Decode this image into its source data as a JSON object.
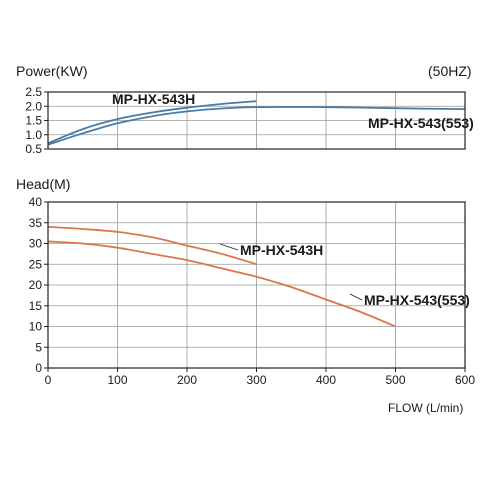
{
  "frequency_label": "(50HZ)",
  "flow_axis_label": "FLOW (L/min)",
  "colors": {
    "power_curve": "#4a7ba4",
    "head_curve": "#d9774f",
    "frame": "#222222",
    "grid": "#9a9a9a"
  },
  "chart_data": [
    {
      "type": "line",
      "title": "",
      "ylabel": "Power(KW)",
      "xlabel": "",
      "xlim": [
        0,
        600
      ],
      "ylim": [
        0.5,
        2.5
      ],
      "grid": "on",
      "y_ticks": [
        "0.5",
        "1.0",
        "1.5",
        "2.0",
        "2.5"
      ],
      "series": [
        {
          "name": "MP-HX-543H",
          "x": [
            0,
            50,
            100,
            150,
            200,
            250,
            300
          ],
          "y": [
            0.7,
            1.2,
            1.55,
            1.78,
            1.95,
            2.08,
            2.18
          ]
        },
        {
          "name": "MP-HX-543(553)",
          "x": [
            0,
            50,
            100,
            150,
            200,
            250,
            300,
            400,
            500,
            600
          ],
          "y": [
            0.65,
            1.05,
            1.4,
            1.65,
            1.82,
            1.92,
            1.97,
            1.97,
            1.93,
            1.9
          ]
        }
      ]
    },
    {
      "type": "line",
      "title": "",
      "ylabel": "Head(M)",
      "xlabel": "FLOW (L/min)",
      "xlim": [
        0,
        600
      ],
      "ylim": [
        0,
        40
      ],
      "grid": "on",
      "x_ticks": [
        "0",
        "100",
        "200",
        "300",
        "400",
        "500",
        "600"
      ],
      "y_ticks": [
        "0",
        "5",
        "10",
        "15",
        "20",
        "25",
        "30",
        "35",
        "40"
      ],
      "series": [
        {
          "name": "MP-HX-543H",
          "x": [
            0,
            50,
            100,
            150,
            200,
            250,
            300
          ],
          "y": [
            34,
            33.5,
            32.8,
            31.5,
            29.5,
            27.5,
            25
          ]
        },
        {
          "name": "MP-HX-543(553)",
          "x": [
            0,
            50,
            100,
            150,
            200,
            250,
            300,
            350,
            400,
            450,
            500
          ],
          "y": [
            30.5,
            30,
            29,
            27.5,
            26,
            24,
            22,
            19.5,
            16.5,
            13.5,
            10
          ]
        }
      ]
    }
  ]
}
